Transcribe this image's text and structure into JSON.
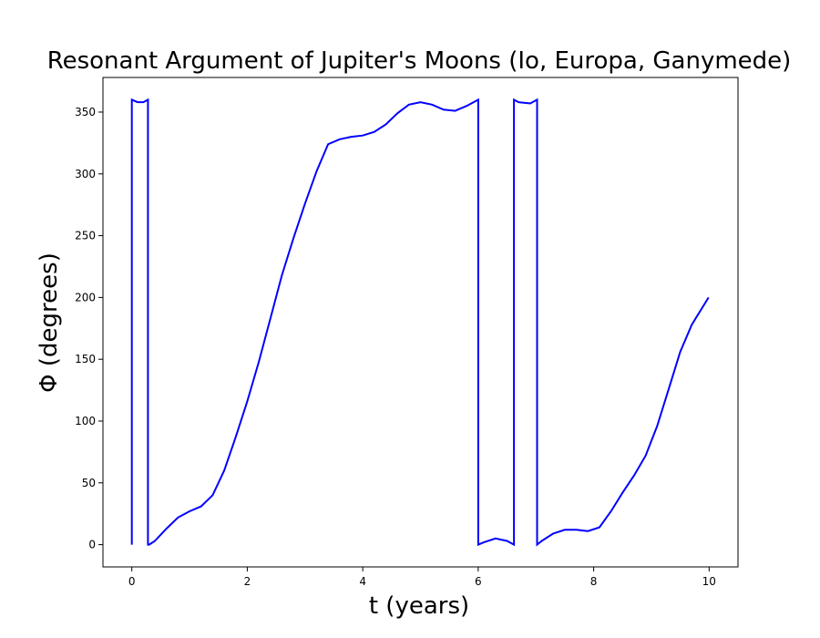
{
  "chart_data": {
    "type": "line",
    "title": "Resonant Argument of Jupiter's Moons (Io, Europa, Ganymede)",
    "xlabel": "t (years)",
    "ylabel": "Φ (degrees)",
    "xlim": [
      -0.5,
      10.5
    ],
    "ylim": [
      -18,
      378
    ],
    "xticks": [
      0,
      2,
      4,
      6,
      8,
      10
    ],
    "yticks": [
      0,
      50,
      100,
      150,
      200,
      250,
      300,
      350
    ],
    "grid": false,
    "legend": "none",
    "series": [
      {
        "color": "#0000ff",
        "x": [
          0.0,
          0.0,
          0.1,
          0.2,
          0.28,
          0.28,
          0.3,
          0.4,
          0.6,
          0.8,
          1.0,
          1.2,
          1.4,
          1.6,
          1.8,
          2.0,
          2.2,
          2.4,
          2.6,
          2.8,
          3.0,
          3.2,
          3.4,
          3.6,
          3.8,
          4.0,
          4.2,
          4.4,
          4.6,
          4.8,
          5.0,
          5.2,
          5.4,
          5.6,
          5.8,
          6.0,
          6.0,
          6.1,
          6.3,
          6.5,
          6.62,
          6.62,
          6.7,
          6.9,
          7.02,
          7.02,
          7.1,
          7.3,
          7.5,
          7.7,
          7.9,
          8.1,
          8.3,
          8.5,
          8.7,
          8.9,
          9.1,
          9.3,
          9.5,
          9.7,
          9.99
        ],
        "y": [
          0,
          360,
          358,
          358,
          360,
          0,
          0,
          3,
          13,
          22,
          27,
          31,
          40,
          60,
          87,
          116,
          148,
          183,
          218,
          248,
          276,
          302,
          324,
          328,
          330,
          331,
          334,
          340,
          349,
          356,
          358,
          356,
          352,
          351,
          355,
          360,
          0,
          2,
          5,
          3,
          0,
          360,
          358,
          357,
          360,
          0,
          3,
          9,
          12,
          12,
          11,
          14,
          27,
          42,
          56,
          72,
          96,
          126,
          156,
          178,
          200
        ]
      }
    ]
  }
}
